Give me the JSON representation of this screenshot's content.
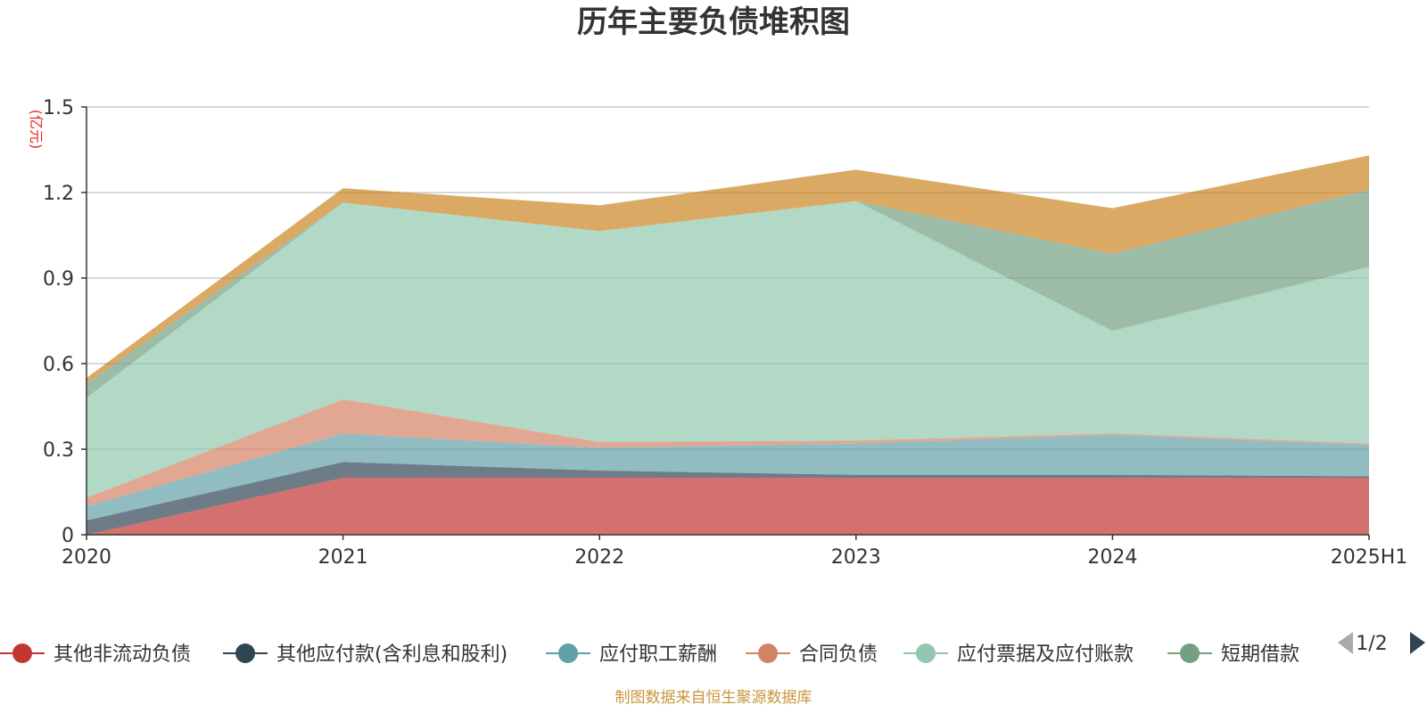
{
  "chart_data": {
    "type": "area",
    "title": "历年主要负债堆积图",
    "ylabel": "(亿元)",
    "xlabel": "",
    "categories": [
      "2020",
      "2021",
      "2022",
      "2023",
      "2024",
      "2025H1"
    ],
    "y_ticks": [
      "0",
      "0.3",
      "0.6",
      "0.9",
      "1.2",
      "1.5"
    ],
    "ylim": [
      0,
      1.5
    ],
    "stacked": true,
    "grid": true,
    "legend_position": "bottom",
    "series": [
      {
        "name": "其他非流动负债",
        "color": "#c23531",
        "values": [
          0.0,
          0.2,
          0.2,
          0.2,
          0.2,
          0.2
        ]
      },
      {
        "name": "其他应付款(含利息和股利)",
        "color": "#2f4554",
        "values": [
          0.05,
          0.055,
          0.025,
          0.01,
          0.01,
          0.005
        ]
      },
      {
        "name": "应付职工薪酬",
        "color": "#61a0a8",
        "values": [
          0.05,
          0.1,
          0.08,
          0.11,
          0.14,
          0.11
        ]
      },
      {
        "name": "合同负债",
        "color": "#d48265",
        "values": [
          0.03,
          0.12,
          0.02,
          0.01,
          0.005,
          0.005
        ]
      },
      {
        "name": "应付票据及应付账款",
        "color": "#91c7ae",
        "values": [
          0.35,
          0.69,
          0.74,
          0.84,
          0.36,
          0.62
        ]
      },
      {
        "name": "短期借款",
        "color": "#749f83",
        "values": [
          0.05,
          0.0,
          0.0,
          0.0,
          0.27,
          0.27
        ]
      },
      {
        "name": "",
        "color": "#ca8622",
        "values": [
          0.02,
          0.05,
          0.09,
          0.11,
          0.16,
          0.12
        ]
      }
    ]
  },
  "legend": {
    "items": [
      "其他非流动负债",
      "其他应付款(含利息和股利)",
      "应付职工薪酬",
      "合同负债",
      "应付票据及应付账款",
      "短期借款"
    ],
    "page_label": "1/2"
  },
  "footer": "制图数据来自恒生聚源数据库"
}
